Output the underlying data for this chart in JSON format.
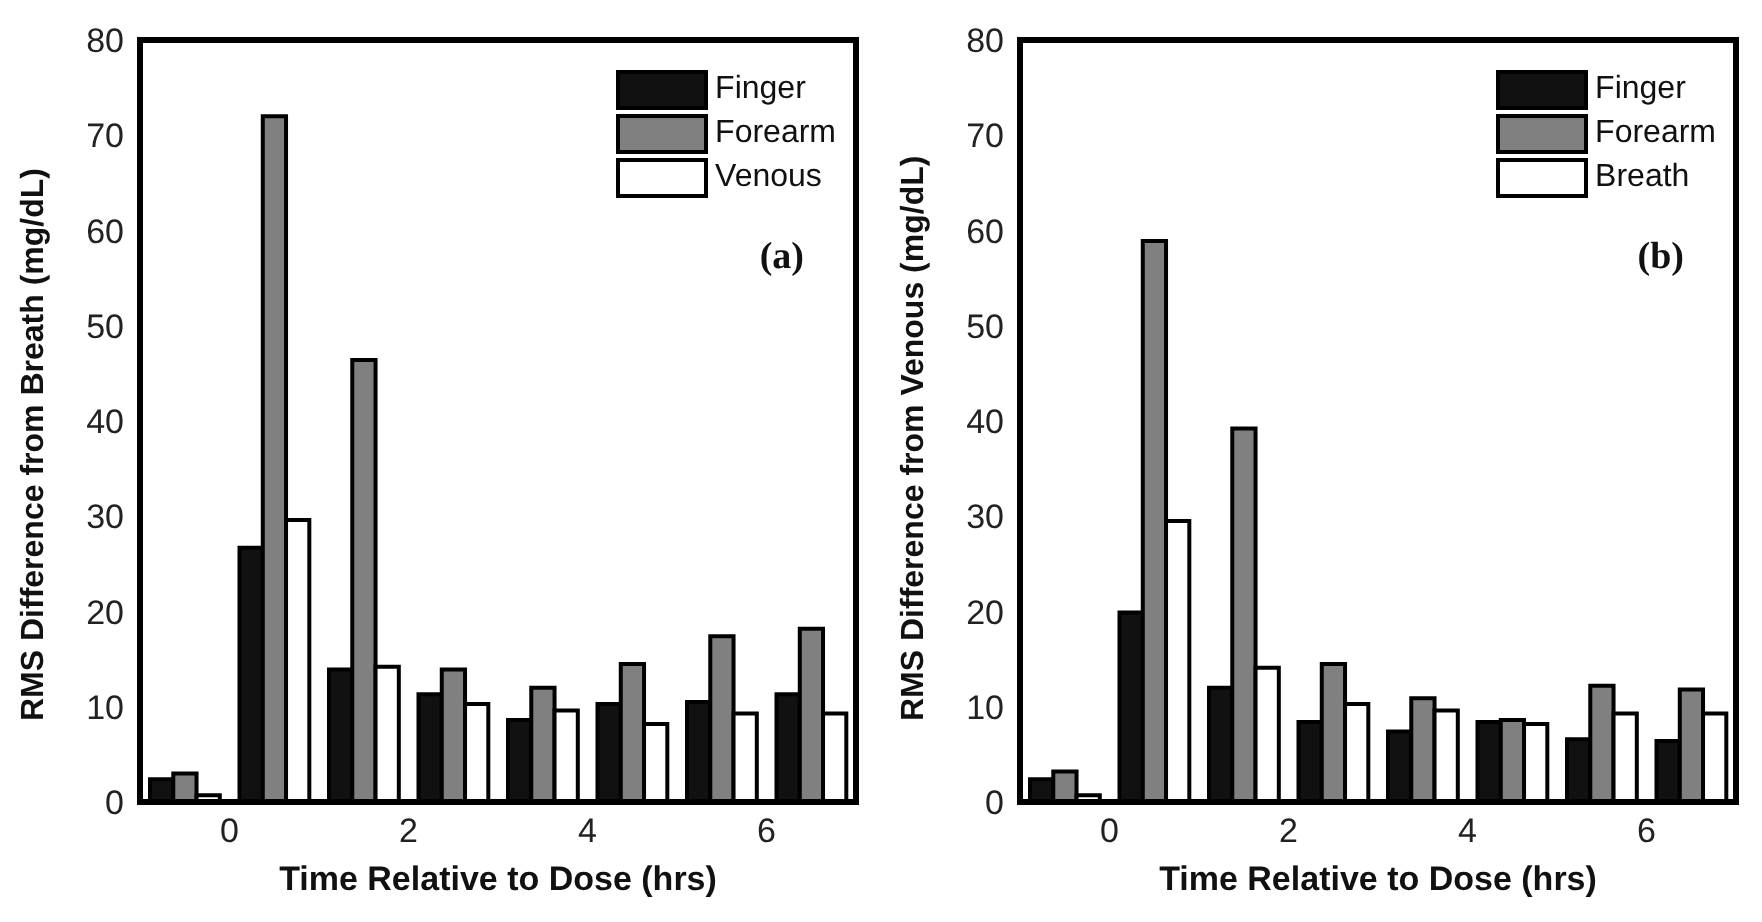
{
  "chart_data": [
    {
      "type": "bar",
      "xlabel": "Time Relative to Dose (hrs)",
      "ylabel": "RMS Difference from Breath (mg/dL)",
      "annotations": [
        "(a)"
      ],
      "x": [
        -0.5,
        0.5,
        1.5,
        2.5,
        3.5,
        4.5,
        5.5,
        6.5
      ],
      "series": [
        {
          "name": "Finger",
          "color": "#111111",
          "values": [
            2.4,
            26.7,
            13.9,
            11.3,
            8.6,
            10.3,
            10.5,
            11.3
          ]
        },
        {
          "name": "Forearm",
          "color": "#808080",
          "values": [
            3.0,
            72.0,
            46.4,
            13.9,
            12.0,
            14.5,
            17.4,
            18.2
          ]
        },
        {
          "name": "Venous",
          "color": "#ffffff",
          "values": [
            0.7,
            29.6,
            14.2,
            10.3,
            9.6,
            8.2,
            9.3,
            9.3
          ]
        }
      ],
      "xlim": [
        -1,
        7
      ],
      "xticks": [
        0,
        2,
        4,
        6
      ],
      "ylim": [
        0,
        80
      ],
      "yticks": [
        0,
        10,
        20,
        30,
        40,
        50,
        60,
        70,
        80
      ],
      "grid": false,
      "legend": "top right"
    },
    {
      "type": "bar",
      "xlabel": "Time Relative to Dose (hrs)",
      "ylabel": "RMS Difference from Venous (mg/dL)",
      "annotations": [
        "(b)"
      ],
      "x": [
        -0.5,
        0.5,
        1.5,
        2.5,
        3.5,
        4.5,
        5.5,
        6.5
      ],
      "series": [
        {
          "name": "Finger",
          "color": "#111111",
          "values": [
            2.4,
            19.9,
            12.0,
            8.4,
            7.4,
            8.4,
            6.6,
            6.4
          ]
        },
        {
          "name": "Forearm",
          "color": "#808080",
          "values": [
            3.2,
            58.9,
            39.2,
            14.5,
            10.9,
            8.6,
            12.2,
            11.8
          ]
        },
        {
          "name": "Breath",
          "color": "#ffffff",
          "values": [
            0.7,
            29.5,
            14.1,
            10.3,
            9.6,
            8.2,
            9.3,
            9.3
          ]
        }
      ],
      "xlim": [
        -1,
        7
      ],
      "xticks": [
        0,
        2,
        4,
        6
      ],
      "ylim": [
        0,
        80
      ],
      "yticks": [
        0,
        10,
        20,
        30,
        40,
        50,
        60,
        70,
        80
      ],
      "grid": false,
      "legend": "top right"
    }
  ]
}
